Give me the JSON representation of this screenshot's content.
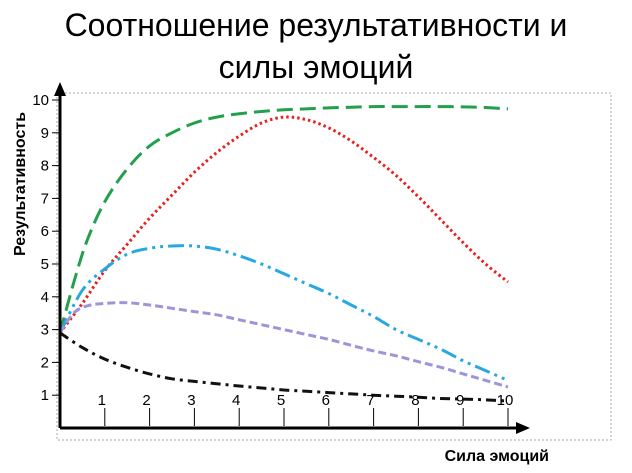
{
  "title_lines": [
    "Соотношение результативности и",
    "силы эмоций"
  ],
  "chart_data": {
    "type": "line",
    "title": "Соотношение результативности и силы эмоций",
    "xlabel": "Сила эмоций",
    "ylabel": "Результативность",
    "xlim": [
      0,
      10
    ],
    "ylim": [
      0,
      10
    ],
    "x_ticks": [
      "1",
      "2",
      "3",
      "4",
      "5",
      "6",
      "7",
      "8",
      "9",
      "10"
    ],
    "y_ticks": [
      "1",
      "2",
      "3",
      "4",
      "5",
      "6",
      "7",
      "8",
      "9",
      "10"
    ],
    "grid": false,
    "series": [
      {
        "color": "#22a04b",
        "dash": "long-dash",
        "x": [
          0,
          0.3,
          0.6,
          1,
          1.5,
          2,
          2.5,
          3,
          3.5,
          4,
          4.5,
          5,
          5.5,
          6,
          6.5,
          7,
          7.5,
          8,
          8.5,
          9,
          9.5,
          10
        ],
        "y": [
          2.9,
          4.4,
          5.7,
          6.9,
          7.9,
          8.6,
          9.0,
          9.3,
          9.48,
          9.58,
          9.65,
          9.7,
          9.73,
          9.76,
          9.78,
          9.8,
          9.8,
          9.8,
          9.8,
          9.79,
          9.77,
          9.73
        ]
      },
      {
        "color": "#e8211e",
        "dash": "dotted",
        "x": [
          0,
          0.5,
          1,
          1.5,
          2,
          2.5,
          3,
          3.5,
          4,
          4.5,
          5,
          5.5,
          6,
          6.5,
          7,
          7.5,
          8,
          8.5,
          9,
          9.5,
          10
        ],
        "y": [
          2.9,
          3.8,
          4.8,
          5.6,
          6.4,
          7.1,
          7.8,
          8.4,
          8.9,
          9.3,
          9.48,
          9.4,
          9.15,
          8.75,
          8.25,
          7.7,
          7.05,
          6.35,
          5.65,
          5.0,
          4.45
        ]
      },
      {
        "color": "#28a8e0",
        "dash": "dash-dot-dot",
        "x": [
          0,
          0.5,
          1,
          1.5,
          2,
          2.5,
          3,
          3.5,
          4,
          4.5,
          5,
          5.5,
          6,
          6.5,
          7,
          7.5,
          8,
          8.5,
          9,
          9.5,
          10
        ],
        "y": [
          2.9,
          4.2,
          4.85,
          5.3,
          5.48,
          5.55,
          5.55,
          5.45,
          5.25,
          5.0,
          4.7,
          4.4,
          4.1,
          3.75,
          3.4,
          3.0,
          2.7,
          2.4,
          2.05,
          1.75,
          1.45
        ]
      },
      {
        "color": "#9b96d8",
        "dash": "short-dash",
        "x": [
          0,
          0.3,
          0.6,
          1,
          1.5,
          2,
          2.5,
          3,
          3.5,
          4,
          4.5,
          5,
          5.5,
          6,
          6.5,
          7,
          7.5,
          8,
          8.5,
          9,
          9.5,
          10
        ],
        "y": [
          2.9,
          3.5,
          3.72,
          3.8,
          3.82,
          3.75,
          3.65,
          3.55,
          3.45,
          3.3,
          3.15,
          3.0,
          2.85,
          2.7,
          2.52,
          2.35,
          2.2,
          2.02,
          1.85,
          1.65,
          1.45,
          1.25
        ]
      },
      {
        "color": "#111111",
        "dash": "dash-dot",
        "x": [
          0,
          0.5,
          1,
          1.5,
          2,
          2.5,
          3,
          3.5,
          4,
          4.5,
          5,
          5.5,
          6,
          6.5,
          7,
          7.5,
          8,
          8.5,
          9,
          9.5,
          10
        ],
        "y": [
          2.9,
          2.45,
          2.1,
          1.85,
          1.65,
          1.5,
          1.42,
          1.35,
          1.28,
          1.22,
          1.16,
          1.12,
          1.08,
          1.04,
          1.0,
          0.97,
          0.94,
          0.9,
          0.88,
          0.86,
          0.82
        ]
      }
    ]
  }
}
